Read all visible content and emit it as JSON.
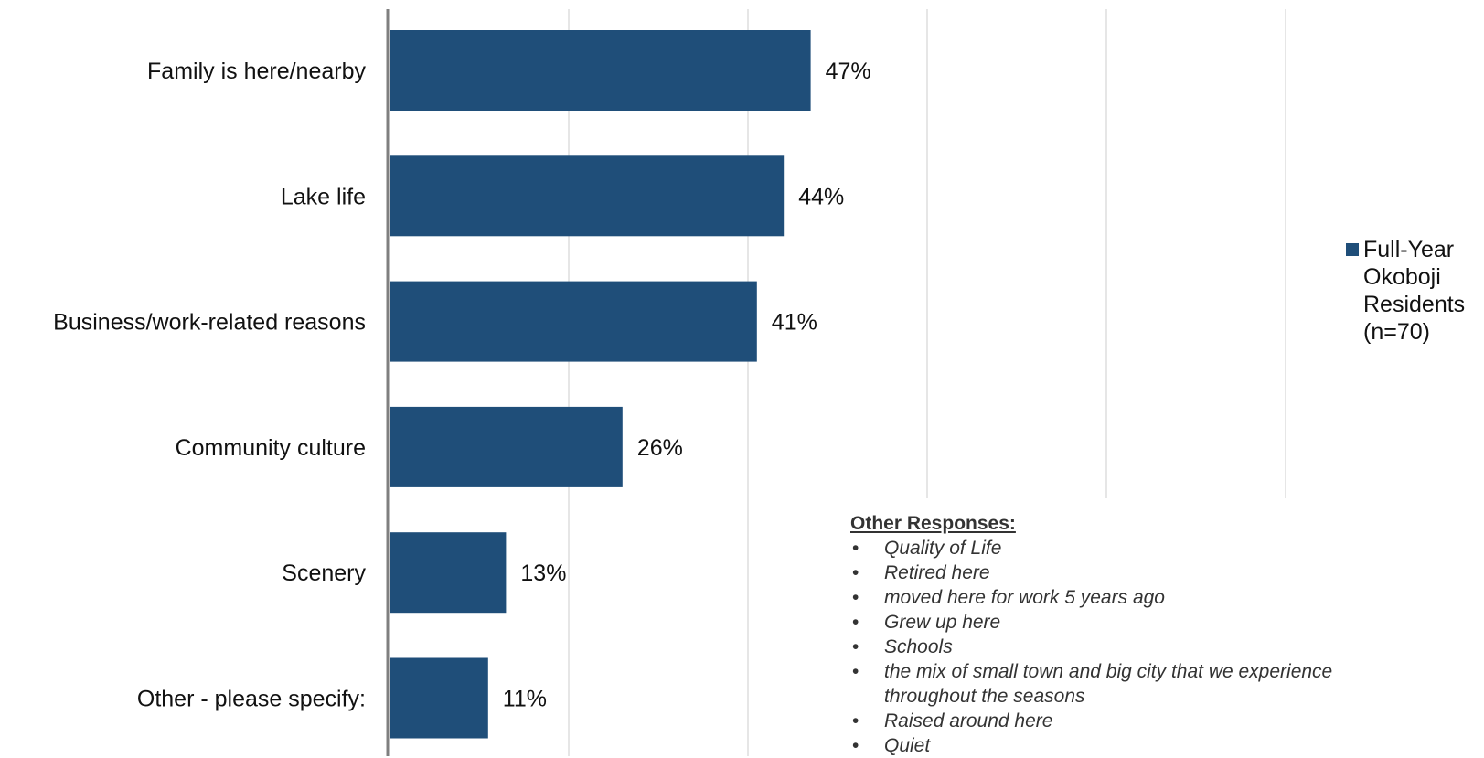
{
  "chart_data": {
    "type": "bar",
    "orientation": "horizontal",
    "categories": [
      "Family is here/nearby",
      "Lake life",
      "Business/work-related reasons",
      "Community culture",
      "Scenery",
      "Other - please specify:"
    ],
    "series": [
      {
        "name": "Full-Year Okoboji Residents (n=70)",
        "values": [
          47,
          44,
          41,
          26,
          13,
          11
        ],
        "value_labels": [
          "47%",
          "44%",
          "41%",
          "26%",
          "13%",
          "11%"
        ],
        "color": "#1f4e79"
      }
    ],
    "xlim": [
      0,
      100
    ],
    "grid": true,
    "gridline_interval": 20,
    "legend_position": "right",
    "legend": {
      "label_lines": [
        "Full-Year",
        "Okoboji",
        "Residents",
        "(n=70)"
      ]
    }
  },
  "other_responses": {
    "title": "Other Responses:",
    "items": [
      "Quality of Life",
      "Retired here",
      "moved here for work 5 years ago",
      "Grew up here",
      "Schools",
      "the mix of small town and big city that we experience throughout the seasons",
      "Raised around here",
      "Quiet"
    ],
    "bullet": "•"
  },
  "colors": {
    "bar": "#1f4e79",
    "gridline": "#d9d9d9",
    "axis": "#7f7f7f"
  }
}
